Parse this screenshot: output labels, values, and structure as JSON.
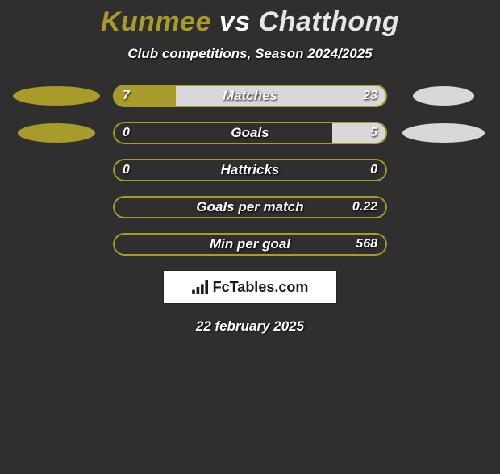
{
  "title": {
    "p1": "Kunmee",
    "vs": " vs ",
    "p2": "Chatthong"
  },
  "title_colors": {
    "p1": "#a89b29",
    "vs": "#ffffff",
    "p2": "#e6e6e6"
  },
  "subtitle": "Club competitions, Season 2024/2025",
  "date": "22 february 2025",
  "brand": "FcTables.com",
  "colors": {
    "left": "#a89b29",
    "right": "#d8d8d8",
    "border": "#a89b29",
    "bg": "#2f2f2f"
  },
  "rows": [
    {
      "label": "Matches",
      "left_val": "7",
      "right_val": "23",
      "left_pct": 23,
      "right_pct": 77,
      "show_left_ellipse": true,
      "left_ellipse_w": 108,
      "show_right_ellipse": true,
      "right_ellipse_w": 76
    },
    {
      "label": "Goals",
      "left_val": "0",
      "right_val": "5",
      "left_pct": 0,
      "right_pct": 20,
      "show_left_ellipse": true,
      "left_ellipse_w": 96,
      "show_right_ellipse": true,
      "right_ellipse_w": 102
    },
    {
      "label": "Hattricks",
      "left_val": "0",
      "right_val": "0",
      "left_pct": 0,
      "right_pct": 0,
      "show_left_ellipse": false,
      "left_ellipse_w": 0,
      "show_right_ellipse": false,
      "right_ellipse_w": 0
    },
    {
      "label": "Goals per match",
      "left_val": "",
      "right_val": "0.22",
      "left_pct": 0,
      "right_pct": 0,
      "show_left_ellipse": false,
      "left_ellipse_w": 0,
      "show_right_ellipse": false,
      "right_ellipse_w": 0
    },
    {
      "label": "Min per goal",
      "left_val": "",
      "right_val": "568",
      "left_pct": 0,
      "right_pct": 0,
      "show_left_ellipse": false,
      "left_ellipse_w": 0,
      "show_right_ellipse": false,
      "right_ellipse_w": 0
    }
  ]
}
